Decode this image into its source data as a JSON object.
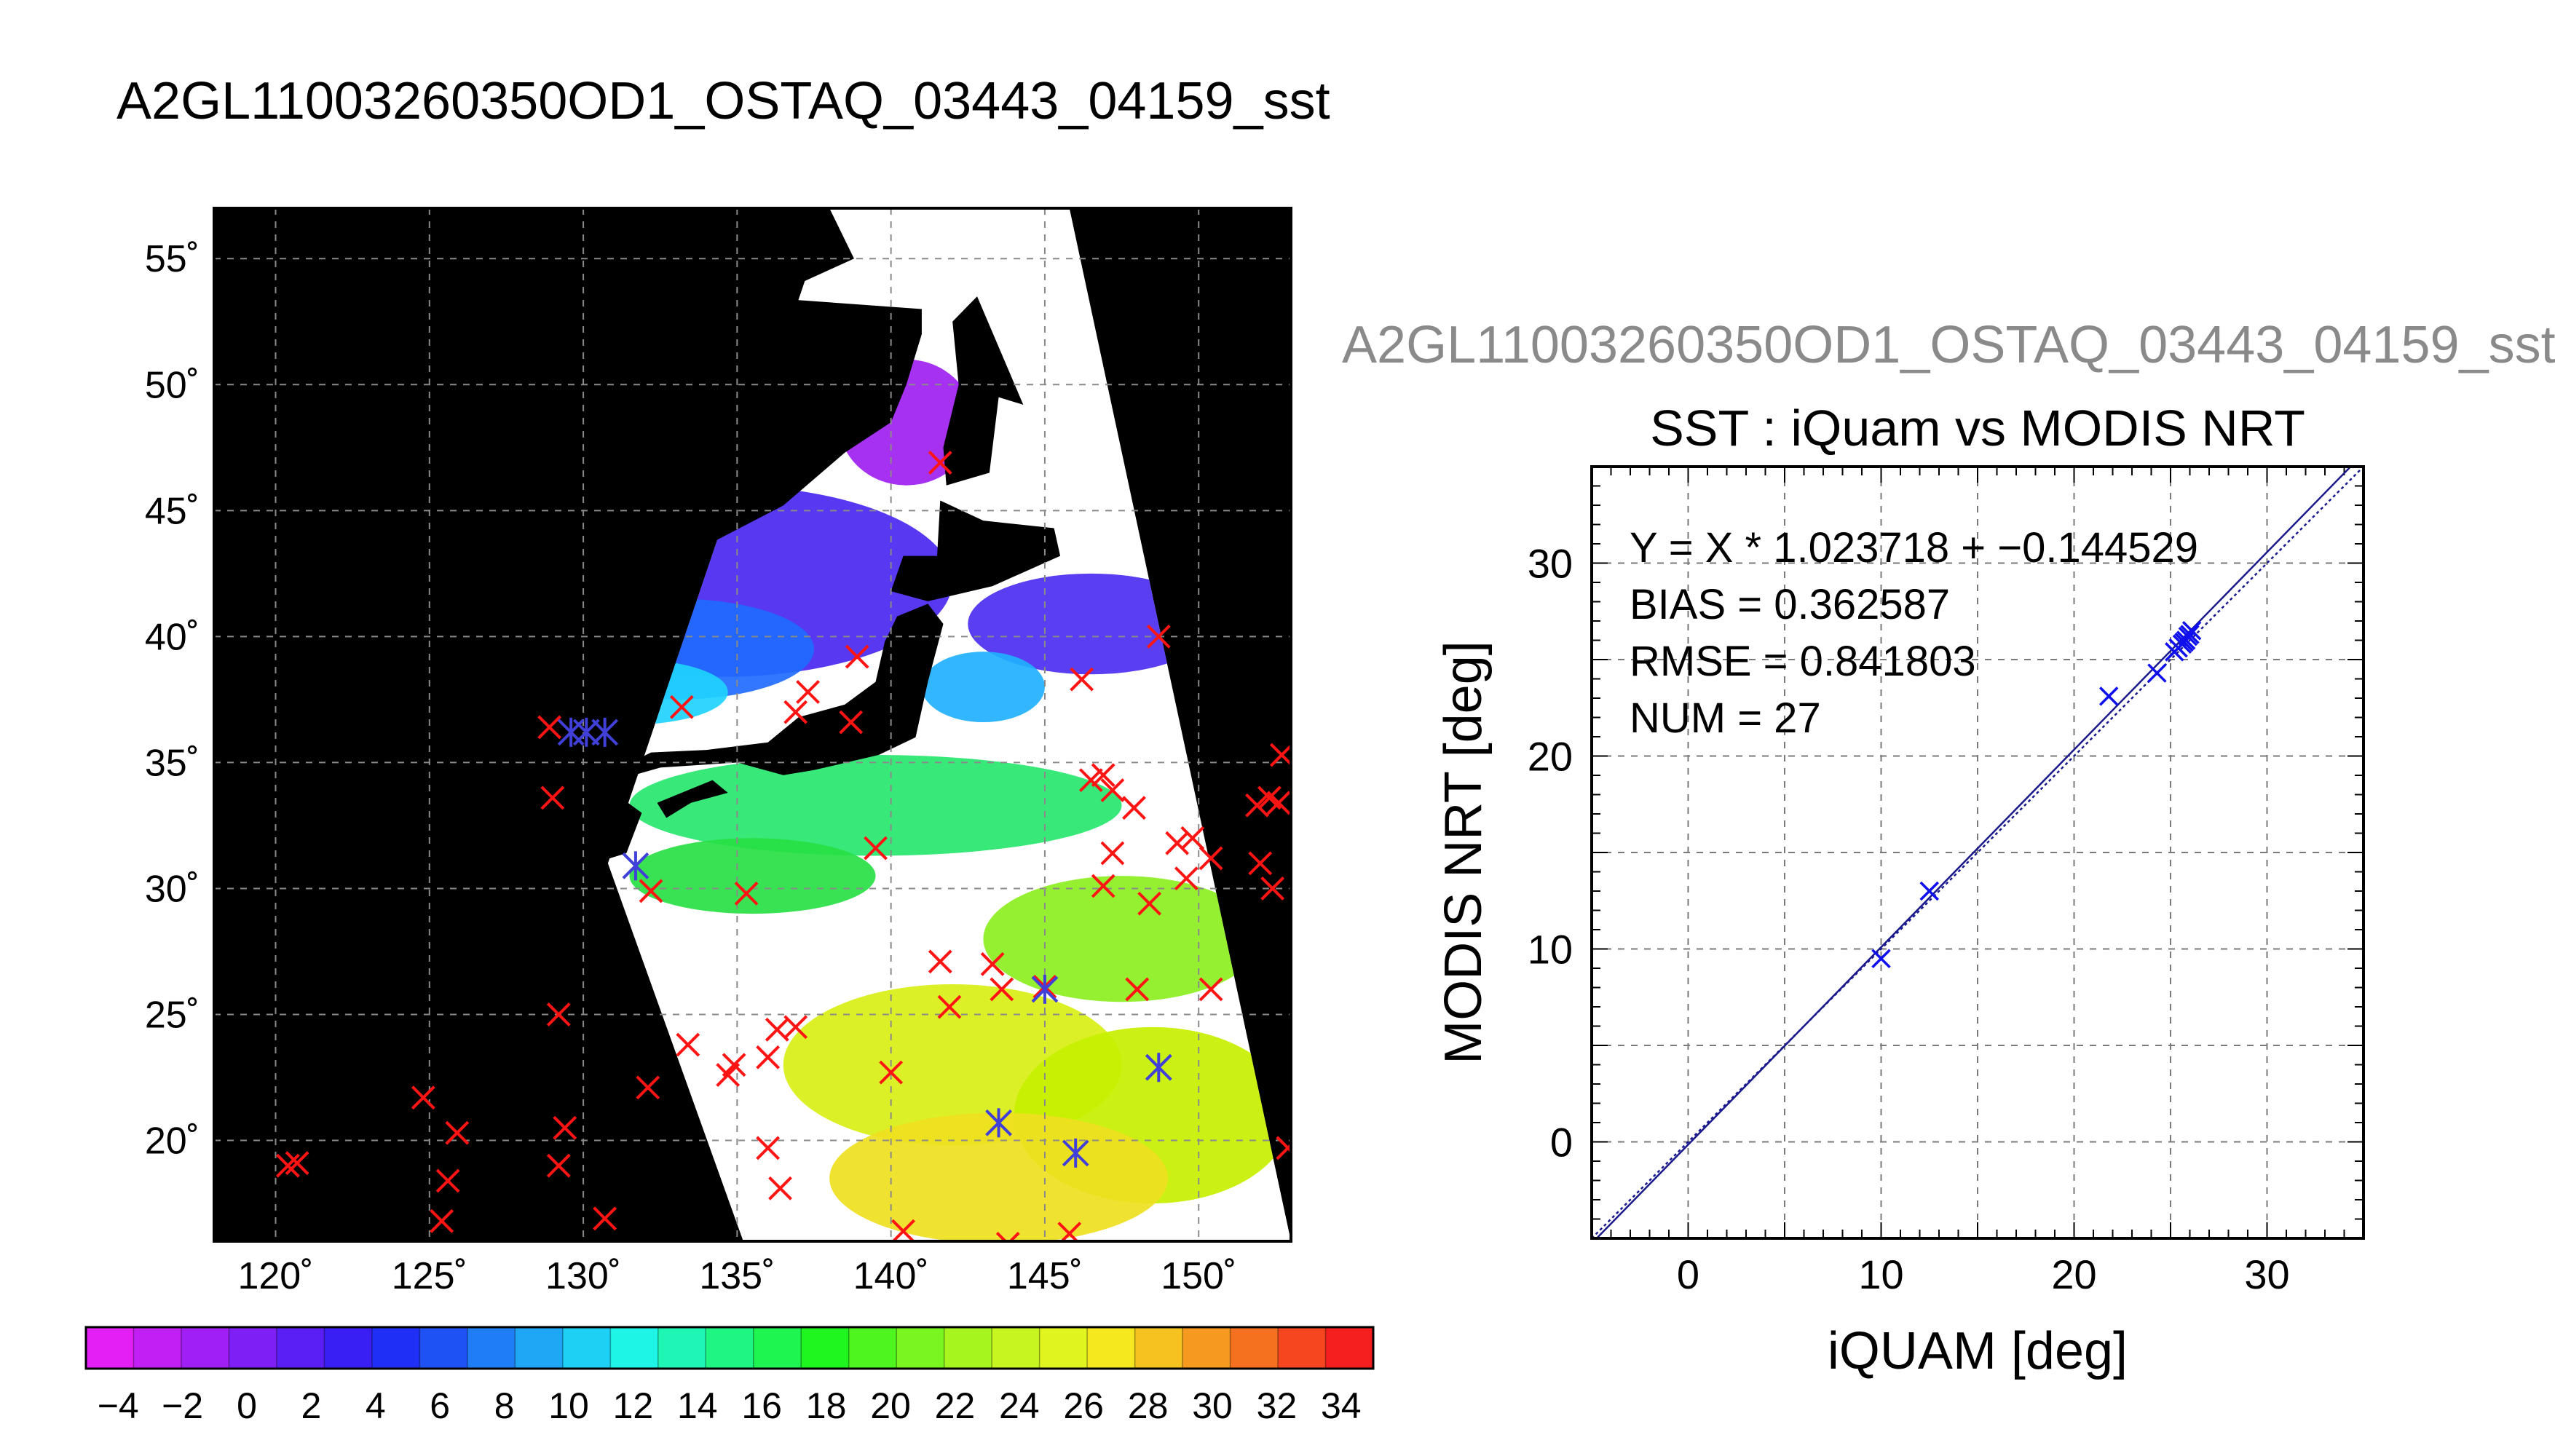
{
  "page_title": "A2GL11003260350OD1_OSTAQ_03443_04159_sst",
  "chart_data": [
    {
      "type": "heatmap",
      "title": "",
      "xlabel": "",
      "ylabel": "",
      "xlim": [
        118,
        153
      ],
      "ylim": [
        16,
        57
      ],
      "x_ticks": [
        {
          "value": 120,
          "label": "120˚"
        },
        {
          "value": 125,
          "label": "125˚"
        },
        {
          "value": 130,
          "label": "130˚"
        },
        {
          "value": 135,
          "label": "135˚"
        },
        {
          "value": 140,
          "label": "140˚"
        },
        {
          "value": 145,
          "label": "145˚"
        },
        {
          "value": 150,
          "label": "150˚"
        }
      ],
      "y_ticks": [
        {
          "value": 20,
          "label": "20˚"
        },
        {
          "value": 25,
          "label": "25˚"
        },
        {
          "value": 30,
          "label": "30˚"
        },
        {
          "value": 35,
          "label": "35˚"
        },
        {
          "value": 40,
          "label": "40˚"
        },
        {
          "value": 45,
          "label": "45˚"
        },
        {
          "value": 50,
          "label": "50˚"
        },
        {
          "value": 55,
          "label": "55˚"
        }
      ],
      "grid": true,
      "swath_corners": [
        [
          138,
          57
        ],
        [
          145.8,
          57
        ],
        [
          153,
          16
        ],
        [
          135.2,
          16
        ],
        [
          130.8,
          31
        ]
      ],
      "sst_fields": [
        {
          "lon": 140.5,
          "lat": 48.5,
          "rx": 2.2,
          "ry": 2.5,
          "color": "#9f1ff0"
        },
        {
          "lon": 134.5,
          "lat": 42.2,
          "rx": 7.5,
          "ry": 3.8,
          "color": "#4a27f0"
        },
        {
          "lon": 133,
          "lat": 39.5,
          "rx": 4.5,
          "ry": 2.0,
          "color": "#1f6bff"
        },
        {
          "lon": 131.5,
          "lat": 37.8,
          "rx": 3.2,
          "ry": 1.3,
          "color": "#1fd2ff"
        },
        {
          "lon": 146.5,
          "lat": 40.5,
          "rx": 4.0,
          "ry": 2.0,
          "color": "#4b2ff0"
        },
        {
          "lon": 143.0,
          "lat": 38.0,
          "rx": 2.0,
          "ry": 1.4,
          "color": "#1fb0ff"
        },
        {
          "lon": 139.5,
          "lat": 33.3,
          "rx": 8.0,
          "ry": 2.0,
          "color": "#27e66e"
        },
        {
          "lon": 135.5,
          "lat": 30.5,
          "rx": 4.0,
          "ry": 1.5,
          "color": "#27e044"
        },
        {
          "lon": 147.5,
          "lat": 28.0,
          "rx": 4.5,
          "ry": 2.5,
          "color": "#8cef1f"
        },
        {
          "lon": 142.0,
          "lat": 23.0,
          "rx": 5.5,
          "ry": 3.2,
          "color": "#d8ef14"
        },
        {
          "lon": 148.5,
          "lat": 21.0,
          "rx": 4.5,
          "ry": 3.5,
          "color": "#c7f000"
        },
        {
          "lon": 143.5,
          "lat": 18.5,
          "rx": 5.5,
          "ry": 2.6,
          "color": "#efe01f"
        }
      ],
      "land_masses": [
        {
          "name": "Honshu",
          "points": [
            [
              130.8,
              34.2
            ],
            [
              132.5,
              34.8
            ],
            [
              135,
              35
            ],
            [
              136.5,
              34.5
            ],
            [
              137.5,
              34.7
            ],
            [
              139.6,
              35.3
            ],
            [
              140.8,
              36
            ],
            [
              141.2,
              38.2
            ],
            [
              141.7,
              40.5
            ],
            [
              141.2,
              41.3
            ],
            [
              140.2,
              40.8
            ],
            [
              139.8,
              39.8
            ],
            [
              139.5,
              38.2
            ],
            [
              138.5,
              37.3
            ],
            [
              137,
              36.8
            ],
            [
              136,
              35.8
            ],
            [
              134,
              35.5
            ],
            [
              132.2,
              35.4
            ],
            [
              130.9,
              34.6
            ]
          ]
        },
        {
          "name": "Kyushu",
          "points": [
            [
              129.7,
              33.4
            ],
            [
              130.9,
              33.9
            ],
            [
              131.9,
              33
            ],
            [
              131.4,
              31.4
            ],
            [
              130.6,
              31.1
            ],
            [
              129.8,
              32.2
            ]
          ]
        },
        {
          "name": "Shikoku",
          "points": [
            [
              132.4,
              33.4
            ],
            [
              134.2,
              34.3
            ],
            [
              134.7,
              33.8
            ],
            [
              133.5,
              33.4
            ],
            [
              132.7,
              32.8
            ]
          ]
        },
        {
          "name": "Hokkaido",
          "points": [
            [
              140,
              41.8
            ],
            [
              141.2,
              41.4
            ],
            [
              143.3,
              42
            ],
            [
              145.5,
              43.2
            ],
            [
              145.3,
              44.3
            ],
            [
              143,
              44.6
            ],
            [
              141.6,
              45.4
            ],
            [
              141.5,
              43.2
            ],
            [
              140.4,
              43.2
            ]
          ]
        },
        {
          "name": "Sakhalin",
          "points": [
            [
              141.8,
              46
            ],
            [
              143.2,
              46.5
            ],
            [
              143.5,
              49.5
            ],
            [
              144.3,
              49.2
            ],
            [
              142.8,
              53.5
            ],
            [
              142,
              52.5
            ],
            [
              142.2,
              50
            ],
            [
              141.7,
              47.5
            ]
          ]
        },
        {
          "name": "Korea",
          "points": [
            [
              125,
              37.8
            ],
            [
              126.7,
              37.5
            ],
            [
              126.3,
              34.6
            ],
            [
              128.8,
              35.1
            ],
            [
              129.5,
              36.2
            ],
            [
              129.4,
              37.8
            ],
            [
              128.3,
              38.6
            ],
            [
              127.5,
              39.8
            ],
            [
              124.5,
              40
            ]
          ]
        },
        {
          "name": "Mainland",
          "points": [
            [
              118,
              57
            ],
            [
              138,
              57
            ],
            [
              138.8,
              55
            ],
            [
              137,
              54
            ],
            [
              135.3,
              53.5
            ],
            [
              141,
              53
            ],
            [
              141,
              52
            ],
            [
              140.5,
              50
            ],
            [
              140,
              48.5
            ],
            [
              138.5,
              47.3
            ],
            [
              136.5,
              45.2
            ],
            [
              133.5,
              43.3
            ],
            [
              131.5,
              43
            ],
            [
              130,
              42.5
            ],
            [
              129.5,
              40.8
            ],
            [
              128.4,
              38.6
            ],
            [
              124.5,
              40
            ],
            [
              121.5,
              39
            ],
            [
              121,
              40.8
            ],
            [
              118.5,
              39
            ],
            [
              118,
              39
            ]
          ]
        }
      ],
      "matchups_red": [
        [
          120.4,
          19.0
        ],
        [
          120.7,
          19.1
        ],
        [
          124.8,
          21.7
        ],
        [
          125.4,
          16.8
        ],
        [
          125.6,
          18.4
        ],
        [
          125.9,
          20.3
        ],
        [
          129.2,
          25.0
        ],
        [
          129.2,
          19.0
        ],
        [
          129.4,
          20.5
        ],
        [
          130.7,
          16.9
        ],
        [
          129.0,
          33.6
        ],
        [
          132.1,
          22.1
        ],
        [
          132.2,
          29.9
        ],
        [
          133.2,
          37.2
        ],
        [
          133.4,
          23.8
        ],
        [
          134.7,
          22.6
        ],
        [
          134.9,
          23.0
        ],
        [
          135.3,
          29.8
        ],
        [
          136.0,
          23.3
        ],
        [
          136.3,
          24.4
        ],
        [
          136.9,
          24.5
        ],
        [
          136.0,
          19.7
        ],
        [
          136.4,
          18.1
        ],
        [
          136.9,
          37.0
        ],
        [
          137.3,
          37.8
        ],
        [
          138.7,
          36.6
        ],
        [
          138.9,
          39.2
        ],
        [
          139.5,
          31.6
        ],
        [
          140.0,
          22.7
        ],
        [
          140.4,
          16.4
        ],
        [
          141.6,
          46.9
        ],
        [
          141.6,
          27.1
        ],
        [
          141.9,
          25.3
        ],
        [
          143.3,
          27.0
        ],
        [
          143.6,
          26.0
        ],
        [
          143.8,
          15.9
        ],
        [
          145.0,
          26.1
        ],
        [
          145.8,
          16.3
        ],
        [
          146.2,
          38.3
        ],
        [
          146.5,
          34.3
        ],
        [
          146.9,
          34.5
        ],
        [
          146.9,
          30.1
        ],
        [
          147.2,
          31.4
        ],
        [
          147.2,
          33.9
        ],
        [
          147.9,
          33.2
        ],
        [
          148.0,
          26.0
        ],
        [
          148.4,
          29.4
        ],
        [
          148.7,
          40.0
        ],
        [
          149.3,
          31.8
        ],
        [
          149.8,
          32.0
        ],
        [
          149.6,
          30.4
        ],
        [
          150.4,
          31.2
        ],
        [
          150.4,
          26.0
        ],
        [
          151.9,
          33.3
        ],
        [
          152.3,
          33.6
        ],
        [
          152.6,
          33.4
        ],
        [
          152.7,
          35.3
        ],
        [
          152.0,
          31.0
        ],
        [
          152.4,
          30.0
        ],
        [
          152.9,
          19.7
        ],
        [
          128.9,
          36.4
        ]
      ],
      "matchups_blue": [
        [
          129.6,
          36.2
        ],
        [
          130.1,
          36.2
        ],
        [
          130.7,
          36.2
        ],
        [
          131.7,
          30.9
        ],
        [
          143.5,
          20.7
        ],
        [
          145.0,
          26.0
        ],
        [
          146.0,
          19.5
        ],
        [
          148.7,
          22.9
        ]
      ]
    },
    {
      "type": "scatter",
      "figure_title": "A2GL11003260350OD1_OSTAQ_03443_04159_sst",
      "title": "SST : iQuam vs MODIS NRT",
      "xlabel": "iQUAM [deg]",
      "ylabel": "MODIS NRT [deg]",
      "xlim": [
        -5,
        35
      ],
      "ylim": [
        -5,
        35
      ],
      "x_ticks": [
        0,
        10,
        20,
        30
      ],
      "y_ticks": [
        0,
        10,
        20,
        30
      ],
      "grid": true,
      "annotations": [
        "Y = X * 1.023718 + −0.144529",
        "BIAS = 0.362587",
        "RMSE = 0.841803",
        "NUM = 27"
      ],
      "fit_line": {
        "slope": 1.023718,
        "intercept": -0.144529
      },
      "series": [
        {
          "color": "#1010ee",
          "x": [
            10.0,
            12.5,
            21.8,
            24.3,
            25.2,
            25.4,
            25.6,
            25.7,
            25.8,
            25.9,
            26.0,
            26.1
          ],
          "y": [
            9.5,
            13.0,
            23.1,
            24.3,
            25.4,
            25.6,
            25.8,
            25.9,
            26.0,
            26.2,
            26.3,
            26.5
          ]
        }
      ]
    },
    {
      "type": "colorbar",
      "vmin": -5,
      "vmax": 35,
      "tick_labels": [
        "−4",
        "−2",
        "0",
        "2",
        "4",
        "6",
        "8",
        "10",
        "12",
        "14",
        "16",
        "18",
        "20",
        "22",
        "24",
        "26",
        "28",
        "30",
        "32",
        "34"
      ],
      "colors": [
        "#e31ff5",
        "#c21ff5",
        "#a01ff5",
        "#7e1ff5",
        "#5a1ff5",
        "#3a1ff5",
        "#1f2ff5",
        "#1f52f5",
        "#1f7ef5",
        "#1fa6f5",
        "#1fd0f5",
        "#1ff5e6",
        "#1ff5b4",
        "#1ff582",
        "#1ff550",
        "#1ff51f",
        "#4ef51f",
        "#7af51f",
        "#a6f51f",
        "#c6f51f",
        "#e0f51f",
        "#f5e81f",
        "#f5c21f",
        "#f59a1f",
        "#f5701f",
        "#f5461f",
        "#f51f1f"
      ]
    }
  ]
}
